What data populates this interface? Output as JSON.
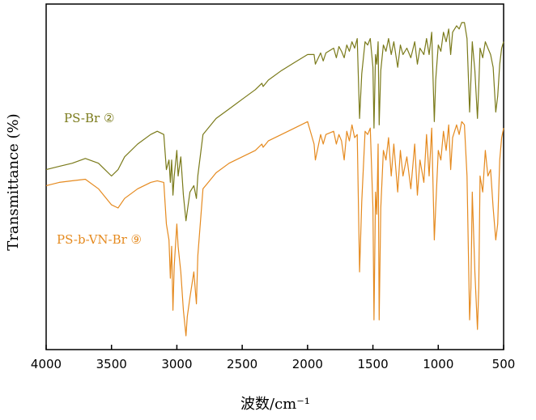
{
  "chart_data": {
    "type": "line",
    "xlabel": "波数/cm⁻¹",
    "ylabel": "Transmittance (%)",
    "xlim": [
      4000,
      500
    ],
    "x_reversed": true,
    "y_ticks_shown": false,
    "x_ticks": [
      4000,
      3500,
      3000,
      2500,
      2000,
      1500,
      1000,
      500
    ],
    "ylim": [
      0,
      100
    ],
    "grid": false,
    "series": [
      {
        "name": "PS-Br ②",
        "color": "#7a7a1a",
        "label_position": "left",
        "points": [
          [
            4000,
            52
          ],
          [
            3900,
            53
          ],
          [
            3800,
            54
          ],
          [
            3700,
            55.5
          ],
          [
            3600,
            54
          ],
          [
            3500,
            50
          ],
          [
            3450,
            52
          ],
          [
            3400,
            56
          ],
          [
            3300,
            60
          ],
          [
            3200,
            63
          ],
          [
            3150,
            64
          ],
          [
            3100,
            63
          ],
          [
            3080,
            52
          ],
          [
            3060,
            55
          ],
          [
            3050,
            48
          ],
          [
            3040,
            55
          ],
          [
            3030,
            44
          ],
          [
            3020,
            50
          ],
          [
            3000,
            58
          ],
          [
            2990,
            50
          ],
          [
            2970,
            56
          ],
          [
            2950,
            44
          ],
          [
            2930,
            36
          ],
          [
            2920,
            39
          ],
          [
            2900,
            45
          ],
          [
            2870,
            47
          ],
          [
            2850,
            43
          ],
          [
            2840,
            50
          ],
          [
            2800,
            63
          ],
          [
            2700,
            68
          ],
          [
            2600,
            71
          ],
          [
            2500,
            74
          ],
          [
            2400,
            77
          ],
          [
            2350,
            79
          ],
          [
            2340,
            78
          ],
          [
            2300,
            80
          ],
          [
            2200,
            83
          ],
          [
            2100,
            85.5
          ],
          [
            2000,
            88
          ],
          [
            1950,
            88
          ],
          [
            1940,
            85
          ],
          [
            1900,
            88.5
          ],
          [
            1880,
            86
          ],
          [
            1860,
            88.5
          ],
          [
            1800,
            90
          ],
          [
            1780,
            87
          ],
          [
            1760,
            90.5
          ],
          [
            1740,
            89
          ],
          [
            1720,
            87
          ],
          [
            1700,
            91
          ],
          [
            1680,
            89
          ],
          [
            1660,
            92
          ],
          [
            1640,
            90
          ],
          [
            1620,
            93
          ],
          [
            1602,
            68
          ],
          [
            1585,
            82
          ],
          [
            1560,
            92
          ],
          [
            1540,
            91
          ],
          [
            1520,
            93
          ],
          [
            1500,
            84
          ],
          [
            1492,
            65
          ],
          [
            1480,
            88
          ],
          [
            1470,
            85
          ],
          [
            1460,
            92
          ],
          [
            1452,
            66
          ],
          [
            1440,
            83
          ],
          [
            1420,
            91
          ],
          [
            1400,
            89
          ],
          [
            1380,
            93
          ],
          [
            1360,
            88
          ],
          [
            1340,
            92
          ],
          [
            1310,
            84
          ],
          [
            1290,
            91
          ],
          [
            1270,
            88
          ],
          [
            1240,
            90
          ],
          [
            1210,
            87
          ],
          [
            1180,
            92
          ],
          [
            1160,
            85
          ],
          [
            1140,
            90
          ],
          [
            1110,
            88
          ],
          [
            1090,
            93
          ],
          [
            1070,
            88
          ],
          [
            1050,
            95
          ],
          [
            1030,
            67
          ],
          [
            1020,
            80
          ],
          [
            1000,
            91
          ],
          [
            980,
            89
          ],
          [
            960,
            95
          ],
          [
            940,
            92
          ],
          [
            920,
            96
          ],
          [
            905,
            88
          ],
          [
            890,
            95
          ],
          [
            860,
            97
          ],
          [
            840,
            96
          ],
          [
            820,
            98
          ],
          [
            800,
            98
          ],
          [
            780,
            93
          ],
          [
            760,
            70
          ],
          [
            750,
            80
          ],
          [
            740,
            92
          ],
          [
            720,
            83
          ],
          [
            700,
            68
          ],
          [
            690,
            78
          ],
          [
            680,
            90
          ],
          [
            660,
            87
          ],
          [
            640,
            92
          ],
          [
            620,
            90
          ],
          [
            600,
            88
          ],
          [
            580,
            84
          ],
          [
            560,
            70
          ],
          [
            545,
            75
          ],
          [
            530,
            85
          ],
          [
            515,
            90
          ],
          [
            500,
            92
          ]
        ]
      },
      {
        "name": "PS-b-VN-Br ⑨",
        "color": "#e58a1f",
        "label_position": "left",
        "points": [
          [
            4000,
            47
          ],
          [
            3900,
            48
          ],
          [
            3800,
            48.5
          ],
          [
            3700,
            49
          ],
          [
            3600,
            46
          ],
          [
            3500,
            41
          ],
          [
            3450,
            40
          ],
          [
            3400,
            43
          ],
          [
            3300,
            46
          ],
          [
            3200,
            48
          ],
          [
            3150,
            48.5
          ],
          [
            3100,
            48
          ],
          [
            3080,
            35
          ],
          [
            3060,
            30
          ],
          [
            3050,
            18
          ],
          [
            3040,
            28
          ],
          [
            3030,
            8
          ],
          [
            3020,
            22
          ],
          [
            3000,
            35
          ],
          [
            2990,
            28
          ],
          [
            2970,
            20
          ],
          [
            2950,
            8
          ],
          [
            2930,
            0
          ],
          [
            2920,
            6
          ],
          [
            2900,
            12
          ],
          [
            2870,
            20
          ],
          [
            2850,
            10
          ],
          [
            2840,
            25
          ],
          [
            2800,
            46
          ],
          [
            2700,
            51
          ],
          [
            2600,
            54
          ],
          [
            2500,
            56
          ],
          [
            2400,
            58
          ],
          [
            2350,
            60
          ],
          [
            2340,
            59
          ],
          [
            2300,
            61
          ],
          [
            2200,
            63
          ],
          [
            2100,
            65
          ],
          [
            2000,
            67
          ],
          [
            1950,
            60
          ],
          [
            1940,
            55
          ],
          [
            1900,
            63
          ],
          [
            1880,
            60
          ],
          [
            1860,
            63
          ],
          [
            1800,
            64
          ],
          [
            1780,
            60
          ],
          [
            1760,
            63
          ],
          [
            1740,
            61
          ],
          [
            1720,
            55
          ],
          [
            1700,
            64
          ],
          [
            1680,
            61
          ],
          [
            1660,
            66
          ],
          [
            1640,
            62
          ],
          [
            1620,
            63
          ],
          [
            1602,
            20
          ],
          [
            1585,
            42
          ],
          [
            1560,
            64
          ],
          [
            1540,
            63
          ],
          [
            1520,
            65
          ],
          [
            1500,
            40
          ],
          [
            1492,
            5
          ],
          [
            1480,
            45
          ],
          [
            1470,
            38
          ],
          [
            1460,
            60
          ],
          [
            1452,
            5
          ],
          [
            1440,
            40
          ],
          [
            1420,
            58
          ],
          [
            1400,
            55
          ],
          [
            1380,
            62
          ],
          [
            1360,
            50
          ],
          [
            1340,
            60
          ],
          [
            1310,
            45
          ],
          [
            1290,
            58
          ],
          [
            1270,
            50
          ],
          [
            1240,
            56
          ],
          [
            1210,
            46
          ],
          [
            1180,
            60
          ],
          [
            1160,
            44
          ],
          [
            1140,
            55
          ],
          [
            1110,
            48
          ],
          [
            1090,
            63
          ],
          [
            1070,
            50
          ],
          [
            1050,
            65
          ],
          [
            1030,
            30
          ],
          [
            1020,
            40
          ],
          [
            1000,
            58
          ],
          [
            980,
            55
          ],
          [
            960,
            64
          ],
          [
            940,
            58
          ],
          [
            920,
            66
          ],
          [
            905,
            52
          ],
          [
            890,
            62
          ],
          [
            860,
            66
          ],
          [
            840,
            63
          ],
          [
            820,
            67
          ],
          [
            800,
            66
          ],
          [
            780,
            50
          ],
          [
            760,
            5
          ],
          [
            750,
            15
          ],
          [
            740,
            45
          ],
          [
            720,
            20
          ],
          [
            700,
            2
          ],
          [
            690,
            15
          ],
          [
            680,
            50
          ],
          [
            660,
            45
          ],
          [
            640,
            58
          ],
          [
            620,
            50
          ],
          [
            600,
            52
          ],
          [
            580,
            40
          ],
          [
            560,
            30
          ],
          [
            545,
            35
          ],
          [
            530,
            55
          ],
          [
            515,
            62
          ],
          [
            500,
            65
          ]
        ]
      }
    ]
  }
}
